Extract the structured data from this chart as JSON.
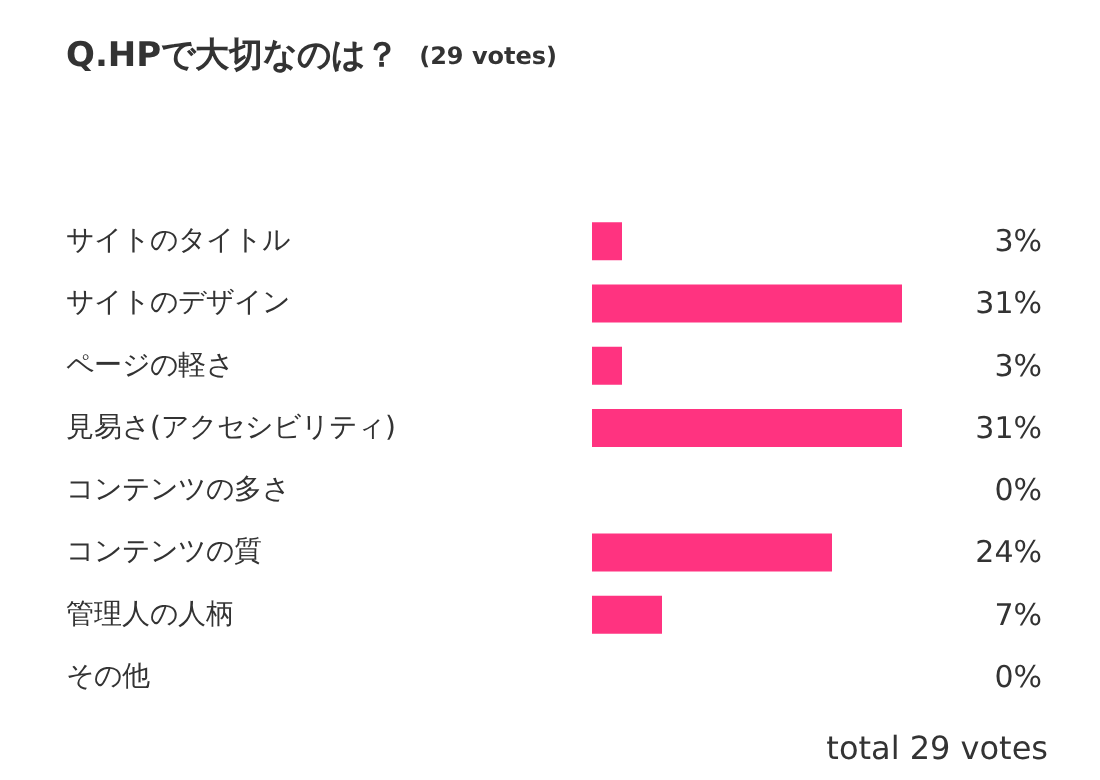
{
  "chart_data": {
    "type": "bar",
    "orientation": "horizontal",
    "title": "Q.HPで大切なのは？",
    "subtitle": "(29 votes)",
    "categories": [
      "サイトのタイトル",
      "サイトのデザイン",
      "ページの軽さ",
      "見易さ(アクセシビリティ)",
      "コンテンツの多さ",
      "コンテンツの質",
      "管理人の人柄",
      "その他"
    ],
    "values": [
      3,
      31,
      3,
      31,
      0,
      24,
      7,
      0
    ],
    "value_labels": [
      "3%",
      "31%",
      "3%",
      "31%",
      "0%",
      "24%",
      "7%",
      "0%"
    ],
    "color": "#ff3380",
    "annotations": [
      "total 29 votes"
    ]
  }
}
